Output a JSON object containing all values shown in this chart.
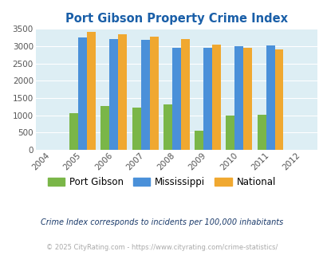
{
  "title": "Port Gibson Property Crime Index",
  "years": [
    2004,
    2005,
    2006,
    2007,
    2008,
    2009,
    2010,
    2011,
    2012
  ],
  "bar_years": [
    2005,
    2006,
    2007,
    2008,
    2009,
    2010,
    2011
  ],
  "port_gibson": [
    1060,
    1270,
    1220,
    1320,
    555,
    1005,
    1020
  ],
  "mississippi": [
    3250,
    3200,
    3180,
    2960,
    2960,
    3000,
    3020
  ],
  "national": [
    3420,
    3350,
    3270,
    3210,
    3050,
    2960,
    2900
  ],
  "port_gibson_color": "#7ab648",
  "mississippi_color": "#4a90d9",
  "national_color": "#f0a830",
  "bg_color": "#ddeef4",
  "title_color": "#1a5fa8",
  "ylim": [
    0,
    3500
  ],
  "yticks": [
    0,
    500,
    1000,
    1500,
    2000,
    2500,
    3000,
    3500
  ],
  "legend_labels": [
    "Port Gibson",
    "Mississippi",
    "National"
  ],
  "bar_width": 0.28,
  "footnote1": "Crime Index corresponds to incidents per 100,000 inhabitants",
  "footnote2": "© 2025 CityRating.com - https://www.cityrating.com/crime-statistics/"
}
